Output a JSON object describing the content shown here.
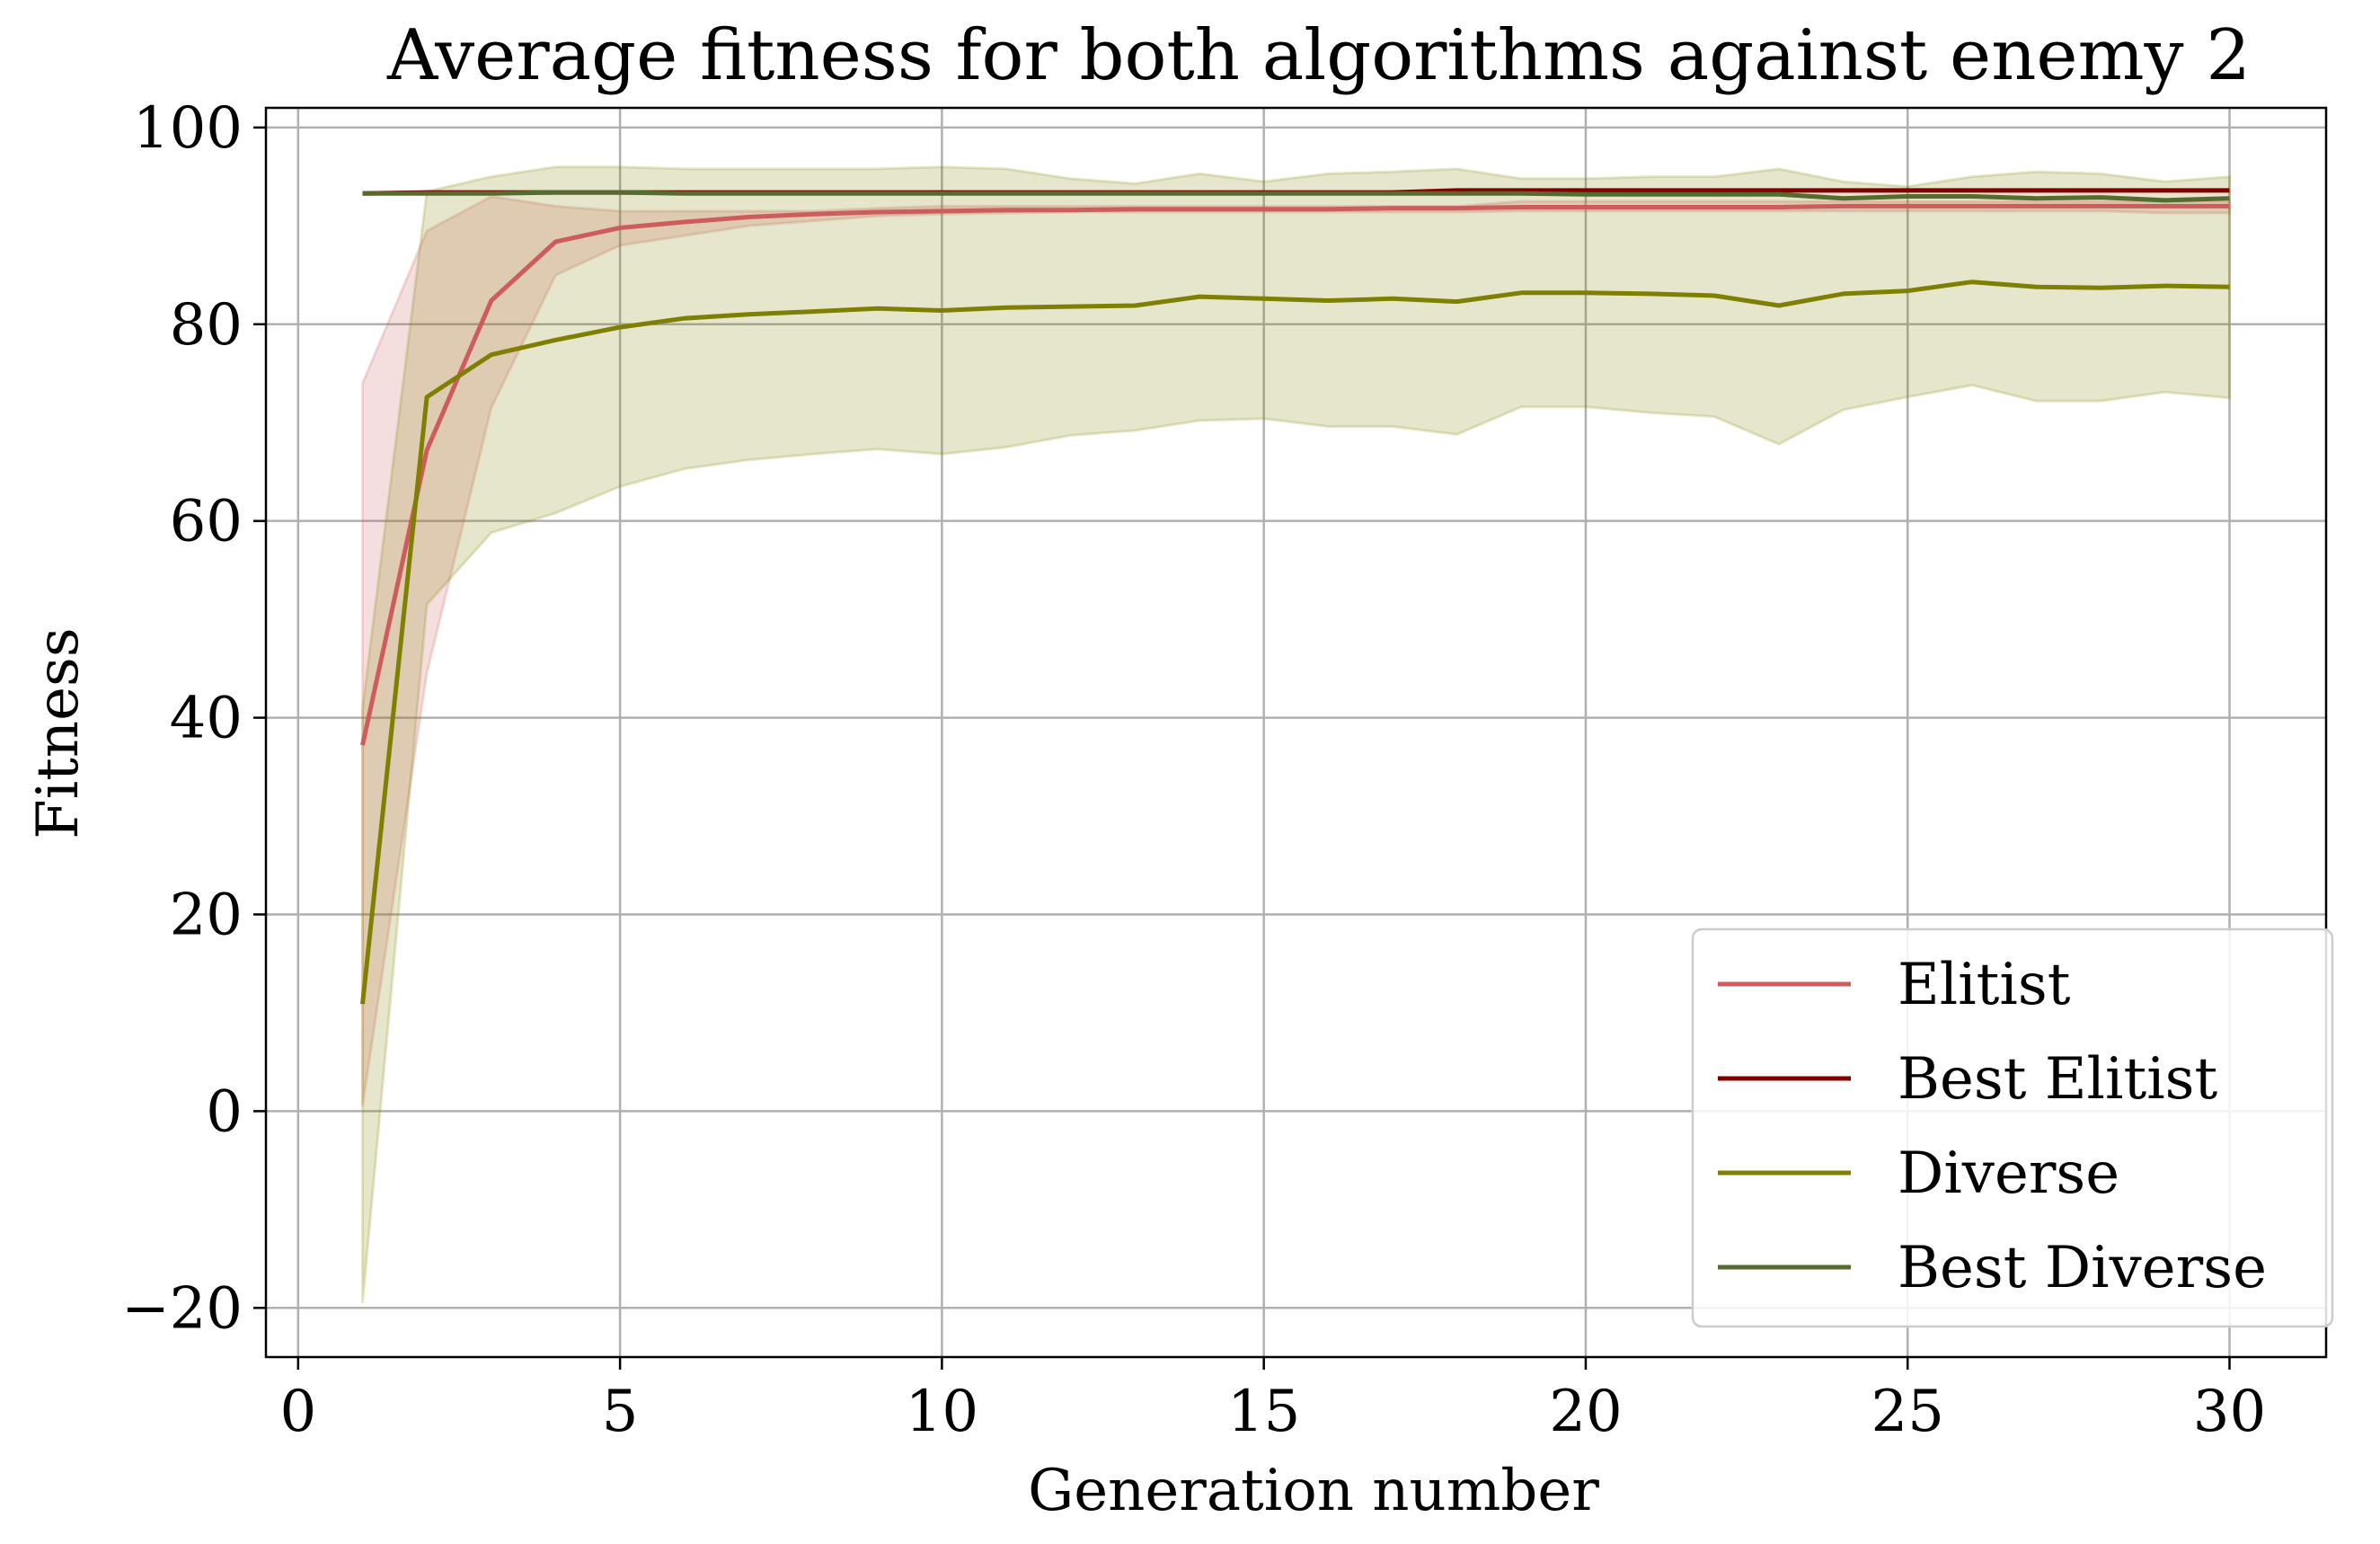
{
  "chart_data": {
    "type": "line",
    "title": "Average fitness for both algorithms against enemy 2",
    "xlabel": "Generation number",
    "ylabel": "Fitness",
    "xlim": [
      -0.5,
      31.5
    ],
    "ylim": [
      -25,
      102
    ],
    "xticks": [
      0,
      5,
      10,
      15,
      20,
      25,
      30
    ],
    "xtick_labels": [
      "0",
      "5",
      "10",
      "15",
      "20",
      "25",
      "30"
    ],
    "yticks": [
      -20,
      0,
      20,
      40,
      60,
      80,
      100
    ],
    "ytick_labels": [
      "−20",
      "0",
      "20",
      "40",
      "60",
      "80",
      "100"
    ],
    "grid": true,
    "legend_position": "lower right",
    "x": [
      1,
      2,
      3,
      4,
      5,
      6,
      7,
      8,
      9,
      10,
      11,
      12,
      13,
      14,
      15,
      16,
      17,
      18,
      19,
      20,
      21,
      22,
      23,
      24,
      25,
      26,
      27,
      28,
      29,
      30
    ],
    "bands": [
      {
        "of": "Elitist",
        "color": "#cd5c5c",
        "opacity": 0.2,
        "upper": [
          74,
          89.5,
          93,
          92,
          91.5,
          91.5,
          91.5,
          91.5,
          91.8,
          92,
          92,
          92,
          92,
          92,
          92,
          92,
          92,
          92,
          92.5,
          92.5,
          92.5,
          92.5,
          92.5,
          92.5,
          92.5,
          92.5,
          92.5,
          92.5,
          92.5,
          92.5
        ],
        "lower": [
          0.5,
          44.5,
          71.5,
          85,
          88,
          89,
          90,
          90.5,
          91,
          91.2,
          91.3,
          91.4,
          91.4,
          91.4,
          91.4,
          91.4,
          91.4,
          91.4,
          91.5,
          91.5,
          91.5,
          91.5,
          91.5,
          91.5,
          91.5,
          91.5,
          91.5,
          91.5,
          91.3,
          91.3
        ]
      },
      {
        "of": "Diverse",
        "color": "#808000",
        "opacity": 0.2,
        "upper": [
          41,
          93.5,
          95,
          96,
          96,
          95.8,
          95.8,
          95.8,
          95.8,
          96,
          95.8,
          94.8,
          94.3,
          95.3,
          94.5,
          95.3,
          95.5,
          95.8,
          94.8,
          94.8,
          95,
          95,
          95.8,
          94.5,
          94,
          95,
          95.5,
          95.3,
          94.5,
          95
        ],
        "lower": [
          -19.5,
          51.5,
          58.8,
          60.8,
          63.5,
          65.3,
          66.2,
          66.8,
          67.3,
          66.8,
          67.5,
          68.7,
          69.2,
          70.2,
          70.4,
          69.6,
          69.6,
          68.8,
          71.6,
          71.6,
          71,
          70.6,
          67.8,
          71.3,
          72.6,
          73.8,
          72.2,
          72.2,
          73.1,
          72.5
        ]
      }
    ],
    "series": [
      {
        "name": "Elitist",
        "color": "#cd5c5c",
        "values": [
          37.2,
          67.2,
          82.4,
          88.4,
          89.8,
          90.4,
          90.9,
          91.2,
          91.4,
          91.5,
          91.6,
          91.6,
          91.7,
          91.7,
          91.7,
          91.7,
          91.8,
          91.8,
          91.9,
          91.9,
          91.9,
          91.9,
          91.9,
          92,
          92,
          92,
          92,
          92,
          92,
          92
        ]
      },
      {
        "name": "Best Elitist",
        "color": "#800000",
        "values": [
          93.3,
          93.4,
          93.4,
          93.4,
          93.4,
          93.4,
          93.4,
          93.4,
          93.4,
          93.4,
          93.4,
          93.4,
          93.4,
          93.4,
          93.4,
          93.4,
          93.4,
          93.6,
          93.6,
          93.6,
          93.6,
          93.6,
          93.6,
          93.6,
          93.6,
          93.6,
          93.6,
          93.6,
          93.6,
          93.6
        ]
      },
      {
        "name": "Diverse",
        "color": "#808000",
        "values": [
          10.9,
          72.6,
          76.9,
          78.4,
          79.7,
          80.6,
          81,
          81.3,
          81.6,
          81.4,
          81.7,
          81.8,
          81.9,
          82.8,
          82.6,
          82.4,
          82.6,
          82.3,
          83.2,
          83.2,
          83.1,
          82.9,
          81.9,
          83.1,
          83.4,
          84.3,
          83.8,
          83.7,
          83.9,
          83.8
        ]
      },
      {
        "name": "Best Diverse",
        "color": "#556b2f",
        "values": [
          93.3,
          93.3,
          93.3,
          93.4,
          93.4,
          93.3,
          93.3,
          93.3,
          93.3,
          93.3,
          93.3,
          93.3,
          93.3,
          93.3,
          93.3,
          93.3,
          93.3,
          93.3,
          93.3,
          93.2,
          93.2,
          93.2,
          93.2,
          92.8,
          93,
          93,
          92.8,
          92.9,
          92.6,
          92.8
        ]
      }
    ]
  }
}
